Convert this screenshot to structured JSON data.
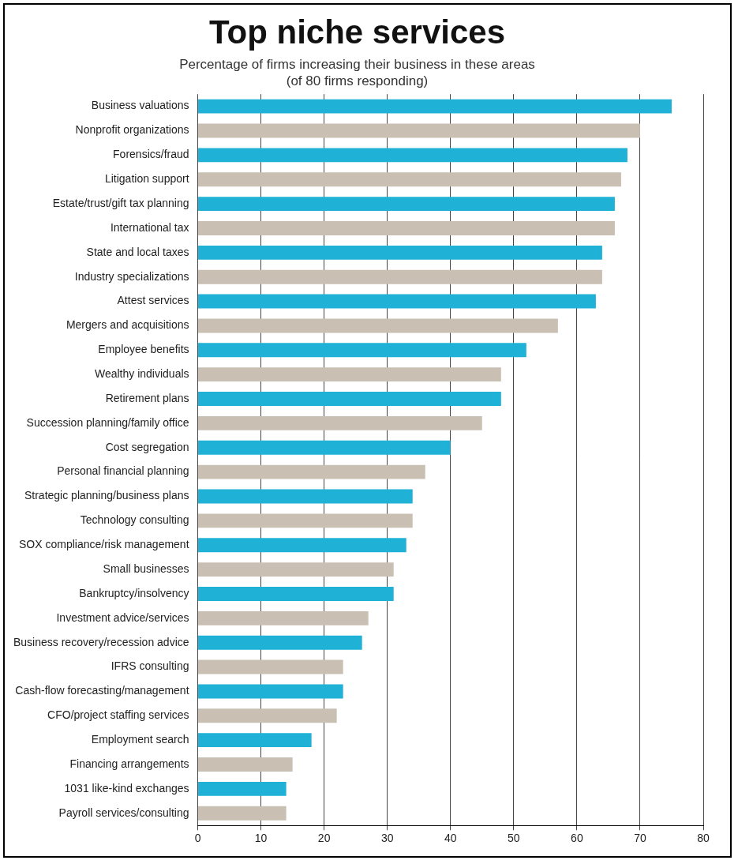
{
  "chart_data": {
    "type": "bar",
    "orientation": "horizontal",
    "title": "Top niche services",
    "subtitle": [
      "Percentage of firms increasing their business in these areas",
      "(of 80 firms responding)"
    ],
    "categories": [
      "Business valuations",
      "Nonprofit organizations",
      "Forensics/fraud",
      "Litigation support",
      "Estate/trust/gift tax planning",
      "International tax",
      "State and local taxes",
      "Industry specializations",
      "Attest services",
      "Mergers and acquisitions",
      "Employee benefits",
      "Wealthy individuals",
      "Retirement plans",
      "Succession planning/family office",
      "Cost segregation",
      "Personal financial planning",
      "Strategic planning/business plans",
      "Technology consulting",
      "SOX compliance/risk management",
      "Small businesses",
      "Bankruptcy/insolvency",
      "Investment advice/services",
      "Business recovery/recession advice",
      "IFRS consulting",
      "Cash-flow forecasting/management",
      "CFO/project staffing services",
      "Employment search",
      "Financing arrangements",
      "1031 like-kind exchanges",
      "Payroll services/consulting"
    ],
    "values": [
      75,
      70,
      68,
      67,
      66,
      66,
      64,
      64,
      63,
      57,
      52,
      48,
      48,
      45,
      40,
      36,
      34,
      34,
      33,
      31,
      31,
      27,
      26,
      23,
      23,
      22,
      18,
      15,
      14,
      14
    ],
    "colors": [
      "#1fb2d6",
      "#c9c0b3",
      "#1fb2d6",
      "#c9c0b3",
      "#1fb2d6",
      "#c9c0b3",
      "#1fb2d6",
      "#c9c0b3",
      "#1fb2d6",
      "#c9c0b3",
      "#1fb2d6",
      "#c9c0b3",
      "#1fb2d6",
      "#c9c0b3",
      "#1fb2d6",
      "#c9c0b3",
      "#1fb2d6",
      "#c9c0b3",
      "#1fb2d6",
      "#c9c0b3",
      "#1fb2d6",
      "#c9c0b3",
      "#1fb2d6",
      "#c9c0b3",
      "#1fb2d6",
      "#c9c0b3",
      "#1fb2d6",
      "#c9c0b3",
      "#1fb2d6",
      "#c9c0b3"
    ],
    "xlim": [
      0,
      80
    ],
    "xticks": [
      0,
      10,
      20,
      30,
      40,
      50,
      60,
      70,
      80
    ],
    "grid": true
  }
}
